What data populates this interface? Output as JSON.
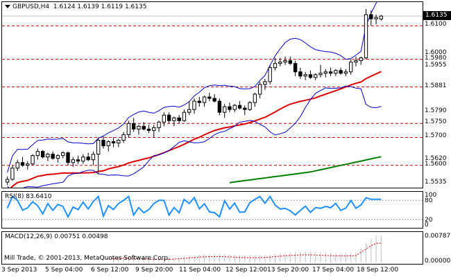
{
  "header": {
    "symbol": "GBPUSD,H4",
    "ohlc": "1.6124 1.6139 1.6119 1.6135"
  },
  "price_axis": {
    "labels": [
      "1.6135",
      "1.6100",
      "1.6000",
      "1.5980",
      "1.5955",
      "1.5881",
      "1.5790",
      "1.5750",
      "1.5700",
      "1.5620",
      "1.5600",
      "1.5535"
    ]
  },
  "current_price": "1.6135",
  "levels": [
    "1.6100",
    "1.5980",
    "1.5881",
    "1.5750",
    "1.5700",
    "1.5600"
  ],
  "rsi": {
    "label": "RSI(8) 83.6410",
    "axis": [
      "100",
      "80",
      "20",
      "0"
    ]
  },
  "macd": {
    "label": "MACD(12,26,9) 0.00751 0.00498",
    "axis_top": "0.00787",
    "axis_bottom": "0.00000"
  },
  "copyright": "Mill Trade, © 2001-2013, MetaQuotes Software Corp.",
  "time_axis": [
    "3 Sep 2013",
    "5 Sep 04:00",
    "6 Sep 12:00",
    "9 Sep 20:00",
    "11 Sep 04:00",
    "12 Sep 12:00",
    "13 Sep 20:00",
    "17 Sep 04:00",
    "18 Sep 12:00"
  ],
  "colors": {
    "candle_line": "#000000",
    "bollinger": "#0000cc",
    "level_line": "#cc0000",
    "ma_red": "#dd0000",
    "ma_green": "#008000",
    "rsi_line": "#1e90ff",
    "macd_signal": "#cc0000",
    "macd_hist": "#c0c0c0"
  },
  "chart_data": {
    "type": "candlestick",
    "candles": [
      [
        1.554,
        1.556,
        1.553,
        1.555
      ],
      [
        1.555,
        1.56,
        1.5545,
        1.559
      ],
      [
        1.559,
        1.562,
        1.558,
        1.561
      ],
      [
        1.561,
        1.563,
        1.5595,
        1.56
      ],
      [
        1.56,
        1.5615,
        1.5585,
        1.5605
      ],
      [
        1.5605,
        1.564,
        1.56,
        1.5635
      ],
      [
        1.5635,
        1.566,
        1.562,
        1.565
      ],
      [
        1.565,
        1.5655,
        1.5625,
        1.563
      ],
      [
        1.563,
        1.5645,
        1.5615,
        1.564
      ],
      [
        1.564,
        1.565,
        1.562,
        1.5625
      ],
      [
        1.5625,
        1.564,
        1.561,
        1.5635
      ],
      [
        1.5635,
        1.565,
        1.5625,
        1.5645
      ],
      [
        1.5645,
        1.565,
        1.56,
        1.561
      ],
      [
        1.561,
        1.563,
        1.5595,
        1.562
      ],
      [
        1.562,
        1.5635,
        1.5605,
        1.5615
      ],
      [
        1.5615,
        1.564,
        1.5605,
        1.563
      ],
      [
        1.563,
        1.5645,
        1.5615,
        1.562
      ],
      [
        1.562,
        1.565,
        1.56,
        1.564
      ],
      [
        1.564,
        1.57,
        1.557,
        1.569
      ],
      [
        1.569,
        1.5705,
        1.566,
        1.567
      ],
      [
        1.567,
        1.569,
        1.565,
        1.5685
      ],
      [
        1.5685,
        1.57,
        1.5665,
        1.568
      ],
      [
        1.568,
        1.5695,
        1.5665,
        1.569
      ],
      [
        1.569,
        1.572,
        1.568,
        1.571
      ],
      [
        1.571,
        1.576,
        1.57,
        1.575
      ],
      [
        1.575,
        1.577,
        1.572,
        1.573
      ],
      [
        1.573,
        1.5745,
        1.571,
        1.574
      ],
      [
        1.574,
        1.5755,
        1.5725,
        1.573
      ],
      [
        1.573,
        1.5745,
        1.5715,
        1.5725
      ],
      [
        1.5725,
        1.5745,
        1.57,
        1.5735
      ],
      [
        1.5735,
        1.576,
        1.572,
        1.5755
      ],
      [
        1.5755,
        1.579,
        1.574,
        1.578
      ],
      [
        1.578,
        1.579,
        1.575,
        1.576
      ],
      [
        1.576,
        1.5775,
        1.574,
        1.577
      ],
      [
        1.577,
        1.578,
        1.575,
        1.576
      ],
      [
        1.576,
        1.58,
        1.5755,
        1.579
      ],
      [
        1.579,
        1.583,
        1.578,
        1.58
      ],
      [
        1.58,
        1.584,
        1.5785,
        1.583
      ],
      [
        1.583,
        1.5845,
        1.581,
        1.5825
      ],
      [
        1.5825,
        1.585,
        1.581,
        1.5845
      ],
      [
        1.5845,
        1.586,
        1.583,
        1.584
      ],
      [
        1.584,
        1.5855,
        1.5825,
        1.583
      ],
      [
        1.583,
        1.584,
        1.578,
        1.579
      ],
      [
        1.579,
        1.582,
        1.577,
        1.581
      ],
      [
        1.581,
        1.5825,
        1.579,
        1.58
      ],
      [
        1.58,
        1.582,
        1.579,
        1.5815
      ],
      [
        1.5815,
        1.583,
        1.58,
        1.5805
      ],
      [
        1.5805,
        1.5815,
        1.578,
        1.58
      ],
      [
        1.58,
        1.583,
        1.5795,
        1.5825
      ],
      [
        1.5825,
        1.586,
        1.581,
        1.5855
      ],
      [
        1.5855,
        1.59,
        1.584,
        1.589
      ],
      [
        1.589,
        1.591,
        1.587,
        1.59
      ],
      [
        1.59,
        1.596,
        1.589,
        1.595
      ],
      [
        1.595,
        1.5985,
        1.594,
        1.5965
      ],
      [
        1.5965,
        1.5985,
        1.5955,
        1.597
      ],
      [
        1.597,
        1.599,
        1.596,
        1.5975
      ],
      [
        1.5975,
        1.599,
        1.596,
        1.5965
      ],
      [
        1.5965,
        1.5975,
        1.592,
        1.5935
      ],
      [
        1.5935,
        1.595,
        1.591,
        1.592
      ],
      [
        1.592,
        1.5935,
        1.5905,
        1.5925
      ],
      [
        1.5925,
        1.594,
        1.591,
        1.5915
      ],
      [
        1.5915,
        1.593,
        1.5905,
        1.5925
      ],
      [
        1.5925,
        1.596,
        1.5915,
        1.593
      ],
      [
        1.593,
        1.5945,
        1.5915,
        1.5935
      ],
      [
        1.5935,
        1.595,
        1.592,
        1.593
      ],
      [
        1.593,
        1.5945,
        1.592,
        1.594
      ],
      [
        1.594,
        1.595,
        1.5925,
        1.593
      ],
      [
        1.593,
        1.5945,
        1.592,
        1.5935
      ],
      [
        1.5935,
        1.598,
        1.5925,
        1.597
      ],
      [
        1.597,
        1.599,
        1.5955,
        1.5975
      ],
      [
        1.5975,
        1.599,
        1.596,
        1.5985
      ],
      [
        1.5985,
        1.616,
        1.598,
        1.614
      ],
      [
        1.614,
        1.6155,
        1.61,
        1.6125
      ],
      [
        1.6125,
        1.614,
        1.6105,
        1.613
      ],
      [
        1.6124,
        1.6139,
        1.6119,
        1.6135
      ]
    ],
    "levels": [
      1.61,
      1.598,
      1.5881,
      1.575,
      1.57,
      1.56
    ]
  }
}
